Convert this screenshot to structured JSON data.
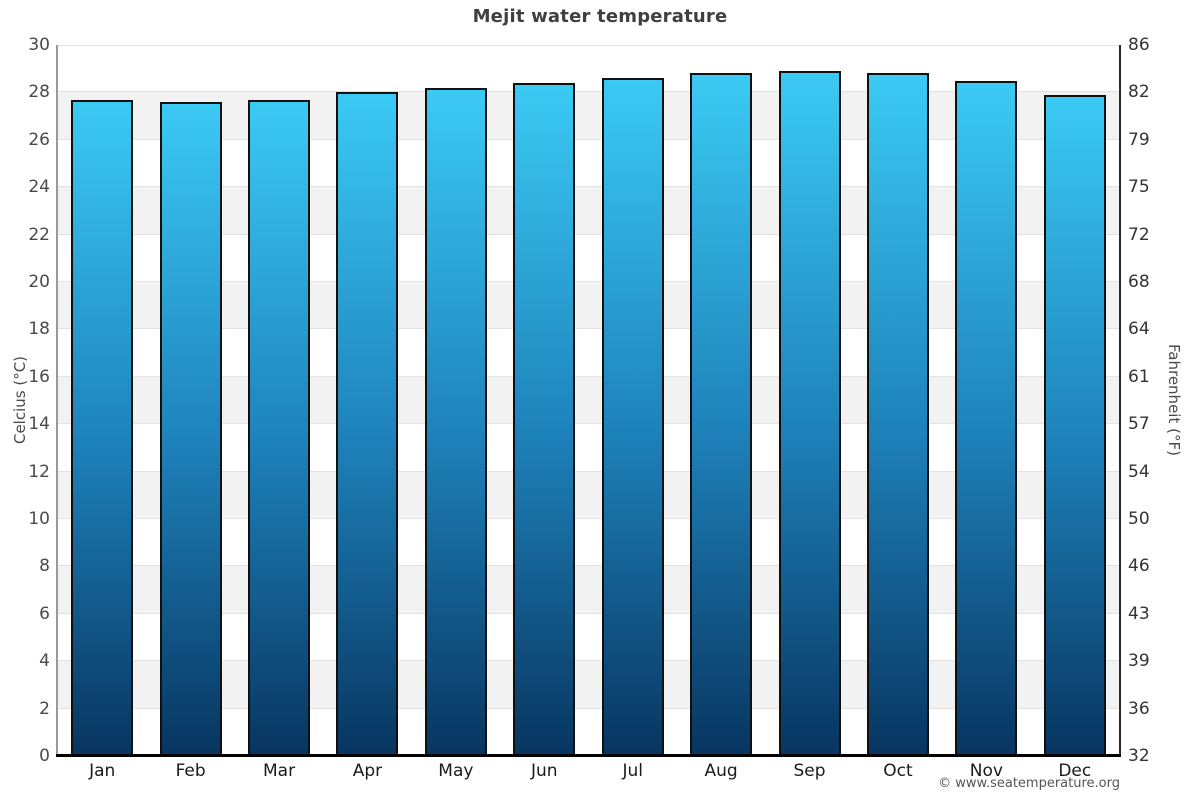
{
  "page": {
    "footer": "© www.seatemperature.org"
  },
  "chart_data": {
    "type": "bar",
    "title": "Mejit water temperature",
    "categories": [
      "Jan",
      "Feb",
      "Mar",
      "Apr",
      "May",
      "Jun",
      "Jul",
      "Aug",
      "Sep",
      "Oct",
      "Nov",
      "Dec"
    ],
    "values": [
      27.7,
      27.6,
      27.7,
      28.0,
      28.2,
      28.4,
      28.6,
      28.8,
      28.9,
      28.8,
      28.5,
      27.9
    ],
    "xlabel": "",
    "ylabel": "Celcius (°C)",
    "ylabel_right": "Fahrenheit (°F)",
    "ylim": [
      0,
      30
    ],
    "ytick_step": 2,
    "yticks_celsius": [
      0,
      2,
      4,
      6,
      8,
      10,
      12,
      14,
      16,
      18,
      20,
      22,
      24,
      26,
      28,
      30
    ],
    "yticks_fahrenheit": [
      "32",
      "36",
      "39",
      "43",
      "46",
      "50",
      "54",
      "57",
      "61",
      "64",
      "68",
      "72",
      "75",
      "79",
      "82",
      "86"
    ],
    "grid": "horizontal-every-2C",
    "background_bands": "alternating-gray-white",
    "legend": "none"
  },
  "colors": {
    "bar_gradient_top": "#3bcaf4",
    "bar_gradient_mid": "#1e82ba",
    "bar_gradient_bottom": "#083560",
    "bar_border": "#101010",
    "band_gray": "#f2f2f2",
    "gridline": "#e2e2e2",
    "title_text": "#3f3f3f",
    "tick_text": "#4a4a4a",
    "month_text": "#1a1a1a",
    "footer_text": "#555555",
    "bottom_axis": "#000000"
  }
}
